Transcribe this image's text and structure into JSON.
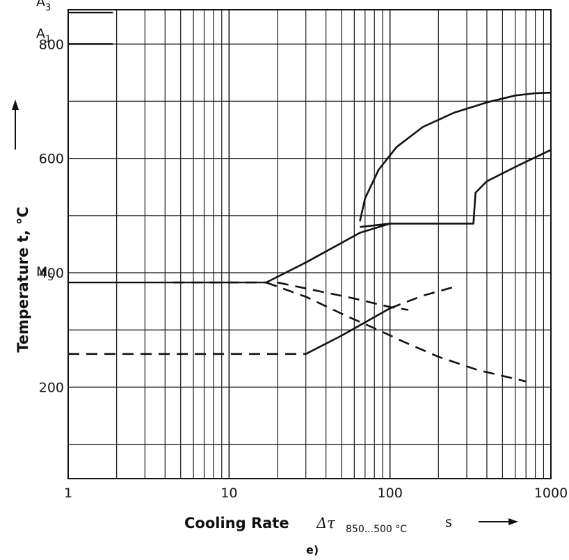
{
  "chart_data": {
    "type": "line",
    "x_scale": "log",
    "xlim": [
      1,
      1000
    ],
    "ylim": [
      40,
      860
    ],
    "grid": true,
    "x_ticks": [
      {
        "value": 1,
        "label": "1"
      },
      {
        "value": 10,
        "label": "10"
      },
      {
        "value": 100,
        "label": "100"
      },
      {
        "value": 1000,
        "label": "1000"
      }
    ],
    "y_ticks": [
      {
        "value": 200,
        "label": "200"
      },
      {
        "value": 400,
        "label": "400"
      },
      {
        "value": 600,
        "label": "600"
      },
      {
        "value": 800,
        "label": "800"
      }
    ],
    "ylabel": "Temperature t, °C",
    "xlabel": {
      "main": "Cooling Rate",
      "symbol": "Δτ",
      "subscript": "850...500 °C",
      "unit": "s"
    },
    "caption": "e)",
    "reference_levels": [
      {
        "name": "A3",
        "label": "A",
        "sub": "3",
        "y": 855,
        "x_range": [
          1,
          1.9
        ]
      },
      {
        "name": "A1",
        "label": "A",
        "sub": "1",
        "y": 800,
        "x_range": [
          1,
          1.9
        ]
      },
      {
        "name": "Ms",
        "label": "M",
        "sub": "S",
        "y": 383,
        "x_range": [
          1,
          17
        ]
      }
    ],
    "series": [
      {
        "id": "ferrite-start",
        "style": "solid",
        "x": [
          65,
          70,
          85,
          110,
          160,
          250,
          400,
          600,
          800,
          1000
        ],
        "y": [
          490,
          530,
          580,
          620,
          655,
          680,
          698,
          710,
          714,
          715
        ]
      },
      {
        "id": "ferrite-finish",
        "style": "solid",
        "x": [
          65,
          100,
          330,
          340,
          400,
          600,
          1000
        ],
        "y": [
          480,
          486,
          486,
          540,
          560,
          585,
          615
        ]
      },
      {
        "id": "bainite-start",
        "style": "solid",
        "x": [
          17,
          30,
          65,
          100
        ],
        "y": [
          383,
          418,
          470,
          486
        ]
      },
      {
        "id": "ms-drop",
        "style": "dashed",
        "x": [
          17,
          30,
          55,
          80,
          120,
          200,
          350,
          700
        ],
        "y": [
          383,
          358,
          323,
          303,
          280,
          253,
          230,
          210
        ]
      },
      {
        "id": "ms-upper-dashed",
        "style": "dashed",
        "x": [
          20,
          60,
          100,
          130
        ],
        "y": [
          383,
          355,
          340,
          335
        ]
      },
      {
        "id": "ms-to-100",
        "style": "dashed",
        "x": [
          4.5,
          17
        ],
        "y": [
          383,
          383
        ]
      },
      {
        "id": "martensite-finish-solid",
        "style": "solid",
        "x": [
          30,
          50,
          75,
          100
        ],
        "y": [
          258,
          290,
          318,
          338
        ]
      },
      {
        "id": "martensite-finish-dashed",
        "style": "dashed",
        "x": [
          100,
          160,
          250
        ],
        "y": [
          338,
          360,
          375
        ]
      },
      {
        "id": "mf-level-dashed",
        "style": "dashed",
        "x": [
          1,
          30
        ],
        "y": [
          258,
          258
        ]
      }
    ]
  }
}
